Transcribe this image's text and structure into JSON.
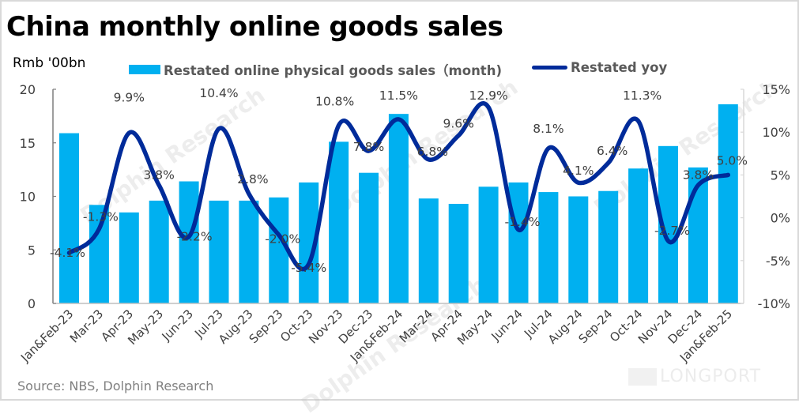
{
  "header": {
    "title": "China monthly online goods sales",
    "unit_label": "Rmb '00bn"
  },
  "footer": {
    "source": "Source: NBS, Dolphin Research"
  },
  "watermark": {
    "text": "Dolphin Research",
    "brand": "LONGPORT"
  },
  "colors": {
    "bar": "#00b0f0",
    "line": "#002b9a",
    "axis": "#bfbfbf",
    "tick_text": "#404040"
  },
  "chart_data": {
    "type": "bar+line",
    "title": "China monthly online goods sales",
    "ylabel_left": "Rmb '00bn",
    "ylim_left": [
      0,
      20
    ],
    "yticks_left": [
      "0",
      "5",
      "10",
      "15",
      "20"
    ],
    "ylim_right": [
      -10,
      15
    ],
    "yticks_right": [
      "-10%",
      "-5%",
      "0%",
      "5%",
      "10%",
      "15%"
    ],
    "grid": false,
    "legend_position": "top",
    "categories": [
      "Jan&Feb-23",
      "Mar-23",
      "Apr-23",
      "May-23",
      "Jun-23",
      "Jul-23",
      "Aug-23",
      "Sep-23",
      "Oct-23",
      "Nov-23",
      "Dec-23",
      "Jan&Feb-24",
      "Mar-24",
      "Apr-24",
      "May-24",
      "Jun-24",
      "Jul-24",
      "Aug-24",
      "Sep-24",
      "Oct-24",
      "Nov-24",
      "Dec-24",
      "Jan&Feb-25"
    ],
    "series": [
      {
        "name": "Restated online physical goods sales（month)",
        "type": "bar",
        "axis": "left",
        "values": [
          15.9,
          9.2,
          8.5,
          9.6,
          11.4,
          9.6,
          9.6,
          9.9,
          11.3,
          15.1,
          12.2,
          17.7,
          9.8,
          9.3,
          10.9,
          11.3,
          10.4,
          10.0,
          10.5,
          12.6,
          14.7,
          12.7,
          18.6
        ]
      },
      {
        "name": "Restated yoy",
        "type": "line",
        "axis": "right",
        "values": [
          -4.1,
          -1.3,
          9.9,
          3.8,
          -2.2,
          10.4,
          2.8,
          -2.0,
          -5.4,
          10.8,
          7.8,
          11.5,
          6.8,
          9.6,
          12.9,
          -1.4,
          8.1,
          4.1,
          6.4,
          11.3,
          -2.7,
          3.8,
          5.0
        ],
        "labels": [
          "-4.1%",
          "-1.3%",
          "9.9%",
          "3.8%",
          "-2.2%",
          "10.4%",
          "2.8%",
          "-2.0%",
          "-5.4%",
          "10.8%",
          "7.8%",
          "11.5%",
          "6.8%",
          "9.6%",
          "12.9%",
          "-1.4%",
          "8.1%",
          "4.1%",
          "6.4%",
          "11.3%",
          "-2.7%",
          "3.8%",
          "5.0%"
        ]
      }
    ]
  }
}
